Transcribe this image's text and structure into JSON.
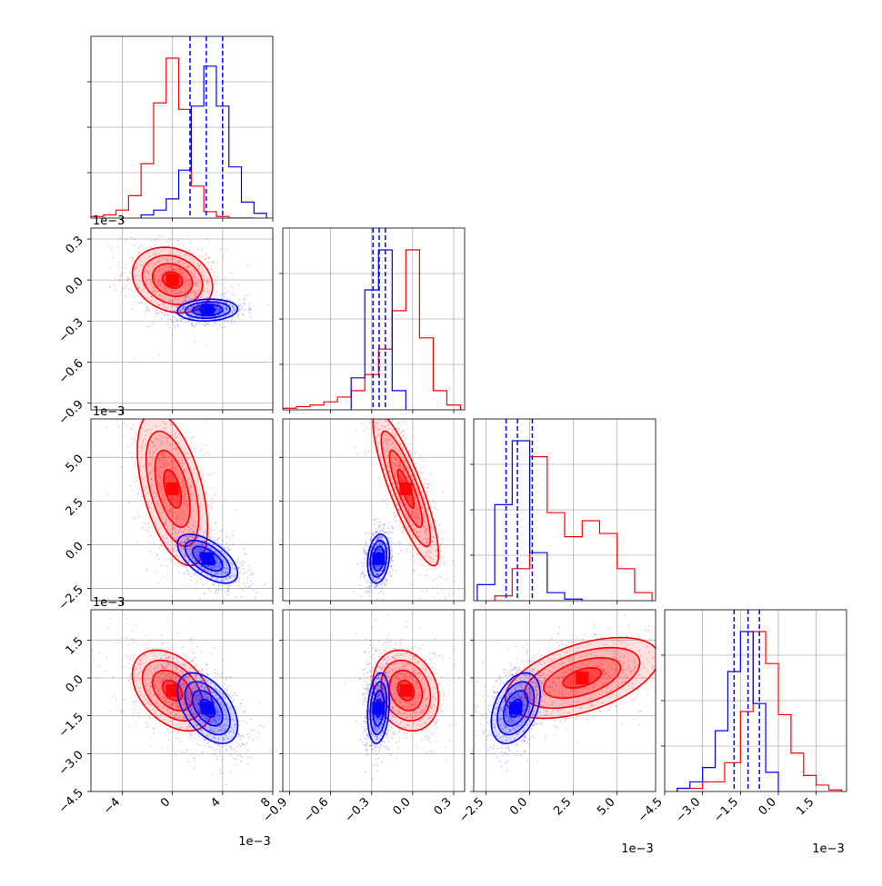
{
  "chart_data": {
    "type": "scatter",
    "title": "",
    "series": [
      {
        "name": "",
        "color": "#ff0000"
      },
      {
        "name": "",
        "color": "#0000ff"
      }
    ],
    "parameters": [
      {
        "index": 0,
        "range": [
          -6.5,
          8
        ],
        "ticks": [
          -4,
          0,
          4,
          8
        ],
        "tick_labels": [
          "−4",
          "0",
          "4",
          "8"
        ],
        "offset_label": "1e−3"
      },
      {
        "index": 1,
        "range": [
          -0.95,
          0.38
        ],
        "ticks": [
          -0.9,
          -0.6,
          -0.3,
          0.0,
          0.3
        ],
        "tick_labels": [
          "−0.9",
          "−0.6",
          "−0.3",
          "0.0",
          "0.3"
        ],
        "offset_label": "1e−3"
      },
      {
        "index": 2,
        "range": [
          -3.2,
          7.2
        ],
        "ticks": [
          -2.5,
          0,
          2.5,
          5
        ],
        "tick_labels": [
          "−2.5",
          "0.0",
          "2.5",
          "5.0"
        ],
        "offset_label": "1e−3"
      },
      {
        "index": 3,
        "range": [
          -4.5,
          2.7
        ],
        "ticks": [
          -4.5,
          -3,
          -1.5,
          0,
          1.5
        ],
        "tick_labels": [
          "−4.5",
          "−3.0",
          "−1.5",
          "0.0",
          "1.5"
        ],
        "offset_label": "1e−3"
      }
    ],
    "grid": true,
    "diagonal": [
      {
        "param": 0,
        "red": {
          "centers": [
            -6,
            -5,
            -4,
            -3,
            -2,
            -1,
            0,
            1,
            2,
            3,
            4,
            5,
            6
          ],
          "values": [
            0.01,
            0.02,
            0.05,
            0.14,
            0.34,
            0.72,
            1.0,
            0.68,
            0.2,
            0.04,
            0.01,
            0.0,
            0.0
          ]
        },
        "blue": {
          "centers": [
            -2,
            -1,
            0,
            1,
            2,
            3,
            4,
            5,
            6,
            7
          ],
          "values": [
            0.02,
            0.05,
            0.12,
            0.3,
            0.7,
            0.95,
            0.7,
            0.32,
            0.1,
            0.03
          ]
        },
        "blue_quantiles": [
          1.4,
          2.7,
          4.0
        ]
      },
      {
        "param": 1,
        "red": {
          "centers": [
            -0.9,
            -0.8,
            -0.7,
            -0.6,
            -0.5,
            -0.4,
            -0.3,
            -0.2,
            -0.1,
            0.0,
            0.1,
            0.2,
            0.3
          ],
          "values": [
            0.01,
            0.02,
            0.03,
            0.05,
            0.08,
            0.12,
            0.22,
            0.38,
            0.62,
            1.0,
            0.45,
            0.12,
            0.03
          ]
        },
        "blue": {
          "centers": [
            -0.4,
            -0.3,
            -0.2,
            -0.1
          ],
          "values": [
            0.2,
            0.75,
            1.0,
            0.12
          ]
        },
        "blue_quantiles": [
          -0.29,
          -0.245,
          -0.2
        ]
      },
      {
        "param": 2,
        "red": {
          "centers": [
            -1.5,
            -0.5,
            0.5,
            1.5,
            2.5,
            3.5,
            4.5,
            5.5,
            6.5
          ],
          "values": [
            0.03,
            0.2,
            0.9,
            0.55,
            0.4,
            0.5,
            0.42,
            0.2,
            0.05
          ]
        },
        "blue": {
          "centers": [
            -2.5,
            -1.5,
            -0.5,
            0.5,
            1.5,
            2.5
          ],
          "values": [
            0.1,
            0.6,
            1.0,
            0.3,
            0.05,
            0.01
          ]
        },
        "blue_quantiles": [
          -1.35,
          -0.7,
          0.15
        ]
      },
      {
        "param": 3,
        "red": {
          "centers": [
            -3.5,
            -2.5,
            -1.75,
            -1.25,
            -0.75,
            -0.25,
            0.25,
            0.75,
            1.25,
            1.75,
            2.25
          ],
          "values": [
            0.02,
            0.06,
            0.18,
            0.5,
            1.0,
            0.8,
            0.48,
            0.24,
            0.1,
            0.04,
            0.01
          ]
        },
        "blue": {
          "centers": [
            -3.75,
            -3.25,
            -2.75,
            -2.25,
            -1.75,
            -1.25,
            -0.75,
            -0.25
          ],
          "values": [
            0.02,
            0.06,
            0.15,
            0.38,
            0.75,
            1.0,
            0.55,
            0.12
          ]
        },
        "blue_quantiles": [
          -1.75,
          -1.2,
          -0.75
        ]
      }
    ],
    "off_diagonal": [
      {
        "row": 1,
        "col": 0,
        "red_center": [
          0,
          0.0
        ],
        "red_sigma": [
          1.6,
          0.12
        ],
        "red_rho": -0.2,
        "blue_center": [
          2.8,
          -0.22
        ],
        "blue_sigma": [
          1.2,
          0.04
        ],
        "blue_rho": 0.1
      },
      {
        "row": 2,
        "col": 0,
        "red_center": [
          0,
          3.2
        ],
        "red_sigma": [
          1.4,
          2.2
        ],
        "red_rho": -0.5,
        "blue_center": [
          2.8,
          -0.8
        ],
        "blue_sigma": [
          1.2,
          0.7
        ],
        "blue_rho": -0.6
      },
      {
        "row": 2,
        "col": 1,
        "red_center": [
          -0.05,
          3.2
        ],
        "red_sigma": [
          0.12,
          2.2
        ],
        "red_rho": -0.85,
        "blue_center": [
          -0.25,
          -0.8
        ],
        "blue_sigma": [
          0.04,
          0.7
        ],
        "blue_rho": 0.2
      },
      {
        "row": 3,
        "col": 0,
        "red_center": [
          0,
          -0.5
        ],
        "red_sigma": [
          1.6,
          0.8
        ],
        "red_rho": -0.4,
        "blue_center": [
          2.8,
          -1.2
        ],
        "blue_sigma": [
          1.2,
          0.7
        ],
        "blue_rho": -0.5
      },
      {
        "row": 3,
        "col": 1,
        "red_center": [
          -0.05,
          -0.5
        ],
        "red_sigma": [
          0.12,
          0.8
        ],
        "red_rho": -0.2,
        "blue_center": [
          -0.25,
          -1.2
        ],
        "blue_sigma": [
          0.04,
          0.7
        ],
        "blue_rho": 0.2
      },
      {
        "row": 3,
        "col": 2,
        "red_center": [
          3.0,
          0.0
        ],
        "red_sigma": [
          2.2,
          0.8
        ],
        "red_rho": 0.5,
        "blue_center": [
          -0.8,
          -1.2
        ],
        "blue_sigma": [
          0.7,
          0.7
        ],
        "blue_rho": 0.4
      }
    ]
  }
}
